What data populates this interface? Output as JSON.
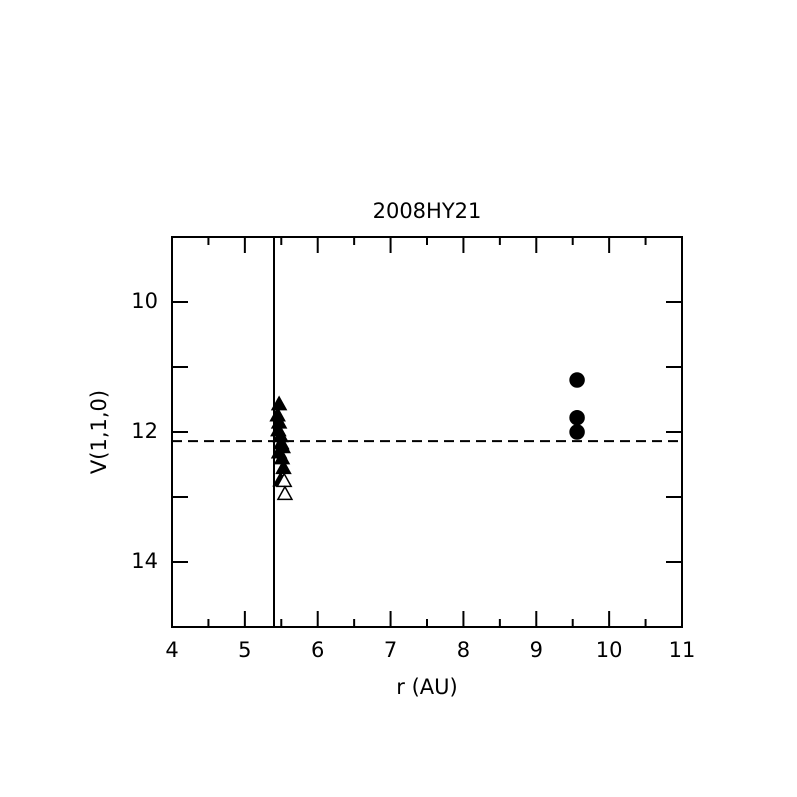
{
  "chart_data": {
    "type": "scatter",
    "title": "2008HY21",
    "x_label": "r (AU)",
    "y_label": "V(1,1,0)",
    "xlim": [
      4,
      11
    ],
    "xticks": [
      4,
      5,
      6,
      7,
      8,
      9,
      10,
      11
    ],
    "xminorticks": [
      4.5,
      5.5,
      6.5,
      7.5,
      8.5,
      9.5,
      10.5
    ],
    "ylim": [
      9,
      15
    ],
    "y_inverted": true,
    "yticks": [
      10,
      12,
      14
    ],
    "yminorticks": [
      11,
      13
    ],
    "color": "#000000",
    "series": [
      {
        "marker": "triangle-filled",
        "x": [
          5.47,
          5.45,
          5.47,
          5.46,
          5.49,
          5.5,
          5.52,
          5.47,
          5.51,
          5.53,
          5.49
        ],
        "values": [
          11.57,
          11.74,
          11.85,
          11.97,
          12.06,
          12.17,
          12.23,
          12.31,
          12.4,
          12.55,
          12.74
        ]
      },
      {
        "marker": "triangle-open",
        "x": [
          5.54,
          5.55
        ],
        "values": [
          12.75,
          12.95
        ]
      },
      {
        "marker": "circle-filled",
        "x": [
          9.56,
          9.56,
          9.56
        ],
        "values": [
          11.2,
          11.78,
          12.0
        ]
      }
    ],
    "vlines": [
      {
        "x": 5.4,
        "style": "solid"
      }
    ],
    "hlines": [
      {
        "y": 12.14,
        "style": "dashed"
      }
    ]
  }
}
